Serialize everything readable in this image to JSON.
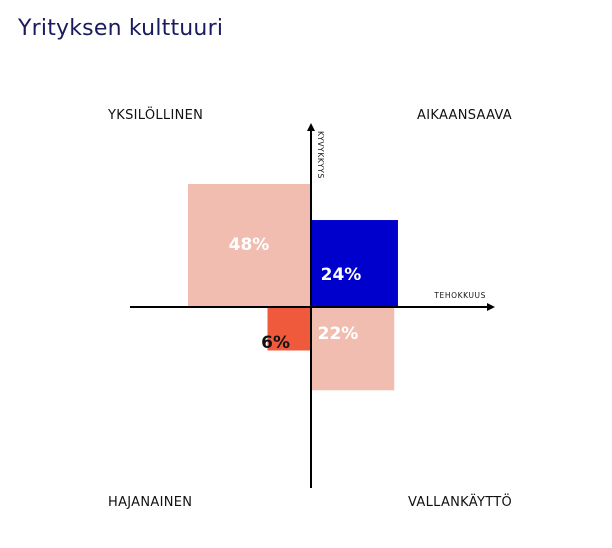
{
  "title": "Yrityksen kulttuuri",
  "chart_data": {
    "type": "quadrant",
    "x_axis_label": "TEHOKKUUS",
    "y_axis_label": "KYVYKKYYS",
    "quadrants": [
      {
        "id": "top-left",
        "name": "YKSILÖLLINEN",
        "value": 48,
        "label": "48%",
        "color": "#f0bdb0",
        "label_color": "#ffffff"
      },
      {
        "id": "top-right",
        "name": "AIKAANSAAVA",
        "value": 24,
        "label": "24%",
        "color": "#0000cc",
        "label_color": "#ffffff"
      },
      {
        "id": "bottom-right",
        "name": "VALLANKÄYTTÖ",
        "value": 22,
        "label": "22%",
        "color": "#f0bdb0",
        "label_color": "#ffffff"
      },
      {
        "id": "bottom-left",
        "name": "HAJANAINEN",
        "value": 6,
        "label": "6%",
        "color": "#f05a3c",
        "label_color": "#111111"
      }
    ]
  }
}
